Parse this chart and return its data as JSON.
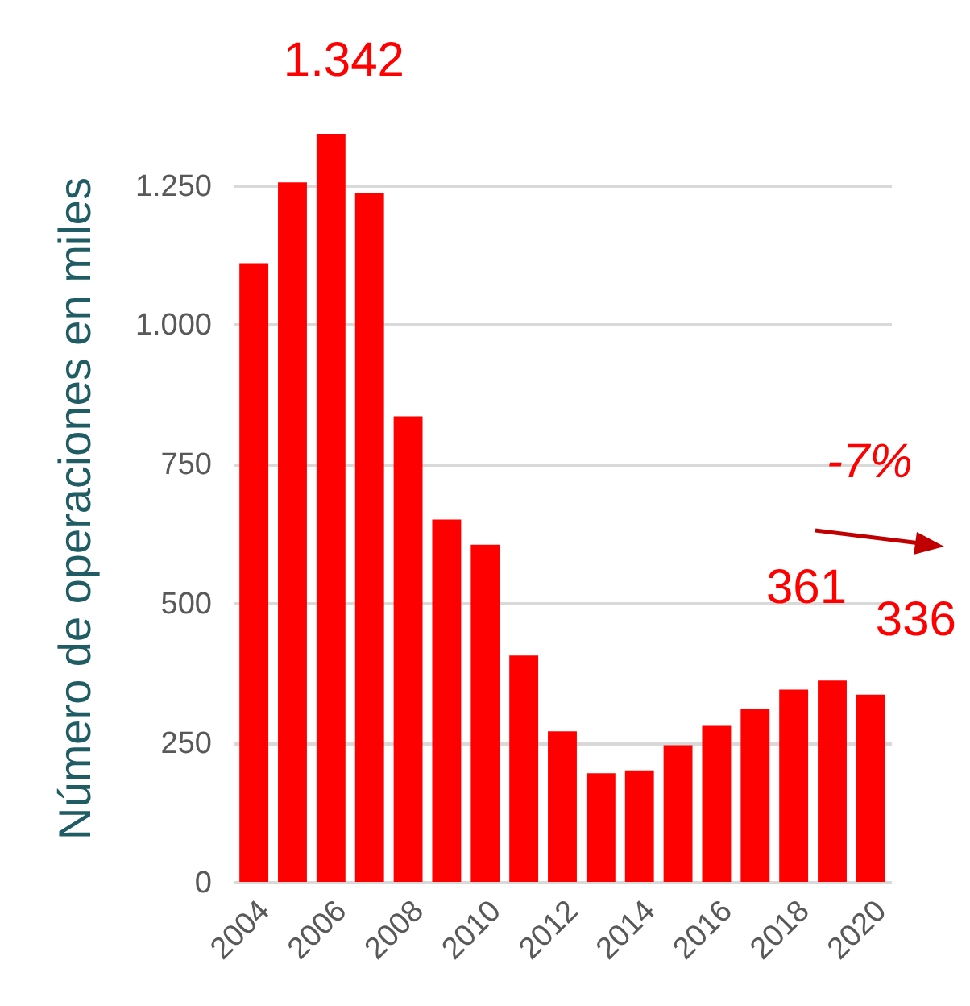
{
  "chart_data": {
    "type": "bar",
    "ylabel": "Número de operaciones en miles",
    "categories": [
      "2004",
      null,
      "2006",
      null,
      "2008",
      null,
      "2010",
      null,
      "2012",
      null,
      "2014",
      null,
      "2016",
      null,
      "2018",
      null,
      "2020"
    ],
    "values": [
      1110,
      1255,
      1342,
      1235,
      835,
      650,
      605,
      406,
      270,
      195,
      200,
      245,
      280,
      310,
      345,
      361,
      336
    ],
    "color": "#ff0000",
    "value_labels": [
      null,
      null,
      "1.342",
      null,
      null,
      null,
      null,
      null,
      null,
      null,
      null,
      null,
      null,
      null,
      null,
      "361",
      "336"
    ],
    "ylim": [
      0,
      1342
    ],
    "yticks": [
      0,
      250,
      500,
      750,
      {
        "value": 1000,
        "label": "1.000"
      },
      {
        "value": 1250,
        "label": "1.250"
      }
    ],
    "grid": "y",
    "annotations": [
      "-7%"
    ]
  }
}
